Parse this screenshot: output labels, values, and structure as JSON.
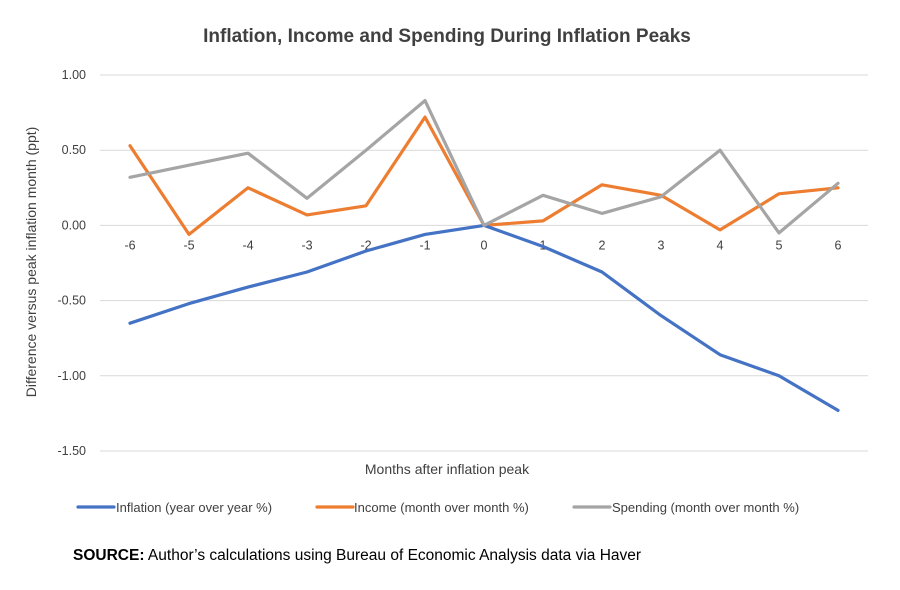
{
  "chart_data": {
    "type": "line",
    "title": "Inflation, Income and Spending During Inflation Peaks",
    "xlabel": "Months after inflation peak",
    "ylabel": "Difference versus peak inflation month (ppt)",
    "x": [
      -6,
      -5,
      -4,
      -3,
      -2,
      -1,
      0,
      1,
      2,
      3,
      4,
      5,
      6
    ],
    "x_tick_labels": [
      "-6",
      "-5",
      "-4",
      "-3",
      "-2",
      "-1",
      "0",
      "1",
      "2",
      "3",
      "4",
      "5",
      "6"
    ],
    "ylim": [
      -1.5,
      1.0
    ],
    "y_ticks": [
      1.0,
      0.5,
      0.0,
      -0.5,
      -1.0,
      -1.5
    ],
    "y_tick_labels": [
      "1.00",
      "0.50",
      "0.00",
      "-0.50",
      "-1.00",
      "-1.50"
    ],
    "grid": true,
    "legend_position": "bottom",
    "series": [
      {
        "name": "Inflation (year over year %)",
        "color": "#4472C4",
        "values": [
          -0.65,
          -0.52,
          -0.41,
          -0.31,
          -0.17,
          -0.06,
          0.0,
          -0.14,
          -0.31,
          -0.6,
          -0.86,
          -1.0,
          -1.23
        ]
      },
      {
        "name": "Income (month over month %)",
        "color": "#ED7D31",
        "values": [
          0.53,
          -0.06,
          0.25,
          0.07,
          0.13,
          0.72,
          0.0,
          0.03,
          0.27,
          0.2,
          -0.03,
          0.21,
          0.25
        ]
      },
      {
        "name": "Spending (month over month %)",
        "color": "#A5A5A5",
        "values": [
          0.32,
          0.4,
          0.48,
          0.18,
          0.5,
          0.83,
          0.0,
          0.2,
          0.08,
          0.19,
          0.5,
          -0.05,
          0.28
        ]
      }
    ]
  },
  "source": {
    "label": "SOURCE:",
    "text": " Author’s calculations using Bureau of Economic Analysis data via Haver"
  }
}
